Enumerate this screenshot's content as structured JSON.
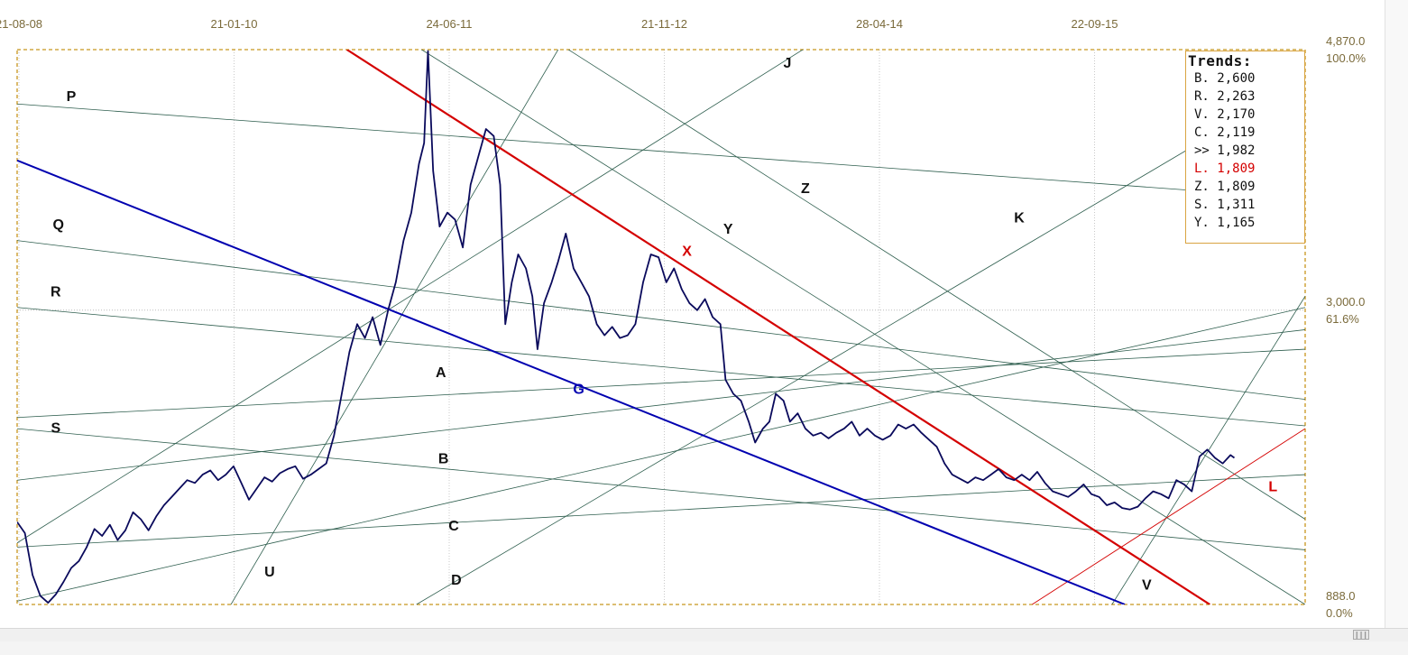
{
  "chart_data": {
    "type": "line",
    "x_tick_labels": [
      "21-08-08",
      "21-01-10",
      "24-06-11",
      "21-11-12",
      "28-04-14",
      "22-09-15"
    ],
    "y_labels": [
      {
        "value": 4870.0,
        "label": "4,870.0",
        "pct": "100.0%"
      },
      {
        "value": 3000.0,
        "label": "3,000.0",
        "pct": "61.6%"
      },
      {
        "value": 888.0,
        "label": "888.0",
        "pct": "0.0%"
      }
    ],
    "ylim": [
      888.0,
      4870.0
    ],
    "colors": {
      "price": "#0a0a5c",
      "thin_lines": "#2e5e4e",
      "red_trend": "#d40000",
      "blue_trend": "#0000b0",
      "frame": "#c8961e",
      "axis_text": "#7a6a3a"
    },
    "series": [
      {
        "name": "",
        "points": [
          [
            0.0,
            1480
          ],
          [
            0.6,
            1400
          ],
          [
            1.2,
            1100
          ],
          [
            1.8,
            950
          ],
          [
            2.4,
            900
          ],
          [
            3.0,
            960
          ],
          [
            3.6,
            1050
          ],
          [
            4.2,
            1150
          ],
          [
            4.8,
            1200
          ],
          [
            5.4,
            1300
          ],
          [
            6.0,
            1430
          ],
          [
            6.6,
            1380
          ],
          [
            7.2,
            1460
          ],
          [
            7.8,
            1350
          ],
          [
            8.4,
            1420
          ],
          [
            9.0,
            1550
          ],
          [
            9.6,
            1500
          ],
          [
            10.2,
            1420
          ],
          [
            10.8,
            1520
          ],
          [
            11.4,
            1600
          ],
          [
            12.0,
            1660
          ],
          [
            12.6,
            1720
          ],
          [
            13.2,
            1780
          ],
          [
            13.8,
            1760
          ],
          [
            14.4,
            1820
          ],
          [
            15.0,
            1850
          ],
          [
            15.6,
            1780
          ],
          [
            16.2,
            1820
          ],
          [
            16.8,
            1880
          ],
          [
            17.4,
            1760
          ],
          [
            18.0,
            1640
          ],
          [
            18.6,
            1720
          ],
          [
            19.2,
            1800
          ],
          [
            19.8,
            1770
          ],
          [
            20.4,
            1830
          ],
          [
            21.0,
            1860
          ],
          [
            21.6,
            1880
          ],
          [
            22.2,
            1790
          ],
          [
            22.8,
            1820
          ],
          [
            23.4,
            1860
          ],
          [
            24.0,
            1900
          ],
          [
            24.6,
            2100
          ],
          [
            25.2,
            2400
          ],
          [
            25.8,
            2700
          ],
          [
            26.4,
            2900
          ],
          [
            27.0,
            2800
          ],
          [
            27.6,
            2950
          ],
          [
            28.2,
            2750
          ],
          [
            28.8,
            3000
          ],
          [
            29.4,
            3200
          ],
          [
            30.0,
            3500
          ],
          [
            30.6,
            3700
          ],
          [
            31.2,
            4050
          ],
          [
            31.6,
            4200
          ],
          [
            31.9,
            4860
          ],
          [
            32.3,
            4000
          ],
          [
            32.8,
            3600
          ],
          [
            33.4,
            3700
          ],
          [
            34.0,
            3650
          ],
          [
            34.6,
            3450
          ],
          [
            35.2,
            3900
          ],
          [
            35.8,
            4100
          ],
          [
            36.4,
            4300
          ],
          [
            37.0,
            4250
          ],
          [
            37.5,
            3900
          ],
          [
            37.9,
            2900
          ],
          [
            38.4,
            3200
          ],
          [
            38.9,
            3400
          ],
          [
            39.5,
            3300
          ],
          [
            40.0,
            3100
          ],
          [
            40.4,
            2720
          ],
          [
            40.9,
            3050
          ],
          [
            41.5,
            3200
          ],
          [
            42.0,
            3350
          ],
          [
            42.6,
            3550
          ],
          [
            43.2,
            3300
          ],
          [
            43.8,
            3200
          ],
          [
            44.4,
            3100
          ],
          [
            45.0,
            2900
          ],
          [
            45.6,
            2820
          ],
          [
            46.2,
            2880
          ],
          [
            46.8,
            2800
          ],
          [
            47.4,
            2820
          ],
          [
            48.0,
            2900
          ],
          [
            48.6,
            3200
          ],
          [
            49.2,
            3400
          ],
          [
            49.8,
            3380
          ],
          [
            50.4,
            3200
          ],
          [
            51.0,
            3300
          ],
          [
            51.6,
            3150
          ],
          [
            52.2,
            3050
          ],
          [
            52.8,
            3000
          ],
          [
            53.4,
            3080
          ],
          [
            54.0,
            2950
          ],
          [
            54.6,
            2900
          ],
          [
            55.0,
            2500
          ],
          [
            55.6,
            2400
          ],
          [
            56.2,
            2350
          ],
          [
            56.8,
            2200
          ],
          [
            57.3,
            2050
          ],
          [
            57.9,
            2150
          ],
          [
            58.4,
            2200
          ],
          [
            58.9,
            2400
          ],
          [
            59.5,
            2350
          ],
          [
            60.0,
            2200
          ],
          [
            60.6,
            2260
          ],
          [
            61.2,
            2150
          ],
          [
            61.8,
            2100
          ],
          [
            62.4,
            2120
          ],
          [
            63.0,
            2080
          ],
          [
            63.6,
            2120
          ],
          [
            64.2,
            2150
          ],
          [
            64.8,
            2200
          ],
          [
            65.4,
            2100
          ],
          [
            66.0,
            2150
          ],
          [
            66.6,
            2100
          ],
          [
            67.2,
            2070
          ],
          [
            67.8,
            2100
          ],
          [
            68.4,
            2180
          ],
          [
            69.0,
            2150
          ],
          [
            69.6,
            2180
          ],
          [
            70.2,
            2120
          ],
          [
            70.8,
            2070
          ],
          [
            71.4,
            2020
          ],
          [
            72.0,
            1900
          ],
          [
            72.6,
            1820
          ],
          [
            73.2,
            1790
          ],
          [
            73.8,
            1760
          ],
          [
            74.4,
            1800
          ],
          [
            75.0,
            1780
          ],
          [
            75.6,
            1820
          ],
          [
            76.2,
            1860
          ],
          [
            76.8,
            1800
          ],
          [
            77.4,
            1780
          ],
          [
            78.0,
            1820
          ],
          [
            78.6,
            1780
          ],
          [
            79.2,
            1840
          ],
          [
            79.8,
            1760
          ],
          [
            80.4,
            1700
          ],
          [
            81.0,
            1680
          ],
          [
            81.6,
            1660
          ],
          [
            82.2,
            1700
          ],
          [
            82.8,
            1750
          ],
          [
            83.4,
            1680
          ],
          [
            84.0,
            1660
          ],
          [
            84.6,
            1600
          ],
          [
            85.2,
            1620
          ],
          [
            85.8,
            1580
          ],
          [
            86.4,
            1570
          ],
          [
            87.0,
            1590
          ],
          [
            87.6,
            1650
          ],
          [
            88.2,
            1700
          ],
          [
            88.8,
            1680
          ],
          [
            89.4,
            1650
          ],
          [
            90.0,
            1780
          ],
          [
            90.6,
            1750
          ],
          [
            91.2,
            1700
          ],
          [
            91.8,
            1950
          ],
          [
            92.4,
            2000
          ],
          [
            93.0,
            1940
          ],
          [
            93.6,
            1900
          ],
          [
            94.2,
            1960
          ],
          [
            94.5,
            1940
          ]
        ]
      }
    ],
    "trendlines": [
      {
        "label": "P",
        "x1": 0.0,
        "y1": 4480,
        "x2": 100,
        "y2": 3800,
        "style": "thin"
      },
      {
        "label": "Q",
        "x1": 0.0,
        "y1": 3500,
        "x2": 100,
        "y2": 2360,
        "style": "thin"
      },
      {
        "label": "R",
        "x1": 0.0,
        "y1": 3020,
        "x2": 100,
        "y2": 2170,
        "style": "thin"
      },
      {
        "label": "S",
        "x1": 0.0,
        "y1": 2150,
        "x2": 100,
        "y2": 1280,
        "style": "thin"
      },
      {
        "label": "A",
        "x1": 0.0,
        "y1": 2230,
        "x2": 100,
        "y2": 2720,
        "style": "thin"
      },
      {
        "label": "B",
        "x1": 0.0,
        "y1": 1780,
        "x2": 100,
        "y2": 2860,
        "style": "thin"
      },
      {
        "label": "C",
        "x1": 0.0,
        "y1": 1300,
        "x2": 100,
        "y2": 1820,
        "style": "thin"
      },
      {
        "label": "D",
        "x1": 0.0,
        "y1": 912,
        "x2": 100,
        "y2": 3020,
        "style": "thin"
      },
      {
        "label": "U",
        "x1": 16.6,
        "y1": 888,
        "x2": 42.0,
        "y2": 4870,
        "style": "thin"
      },
      {
        "label": "J",
        "x1": 0.0,
        "y1": 1330,
        "x2": 61.0,
        "y2": 4870,
        "style": "thin"
      },
      {
        "label": "K",
        "x1": 31.0,
        "y1": 888,
        "x2": 100,
        "y2": 4650,
        "style": "thin"
      },
      {
        "label": "Y",
        "x1": 31.4,
        "y1": 4870,
        "x2": 100,
        "y2": 888,
        "style": "thin"
      },
      {
        "label": "Z",
        "x1": 42.8,
        "y1": 4870,
        "x2": 100,
        "y2": 1500,
        "style": "thin"
      },
      {
        "label": "V",
        "x1": 85.0,
        "y1": 888,
        "x2": 100,
        "y2": 3100,
        "style": "thin"
      },
      {
        "label": "X",
        "x1": 25.6,
        "y1": 4870,
        "x2": 92.6,
        "y2": 888,
        "style": "red"
      },
      {
        "label": "L",
        "x1": 78.8,
        "y1": 888,
        "x2": 100,
        "y2": 2150,
        "style": "red-thin"
      },
      {
        "label": "G",
        "x1": 0.0,
        "y1": 4075,
        "x2": 86.0,
        "y2": 888,
        "style": "blue"
      }
    ],
    "trend_labels": [
      {
        "text": "P",
        "x": 4.2,
        "y": 4500,
        "color": "#111"
      },
      {
        "text": "Q",
        "x": 3.2,
        "y": 3580,
        "color": "#111"
      },
      {
        "text": "R",
        "x": 3.0,
        "y": 3100,
        "color": "#111"
      },
      {
        "text": "S",
        "x": 3.0,
        "y": 2120,
        "color": "#111"
      },
      {
        "text": "A",
        "x": 32.9,
        "y": 2520,
        "color": "#111"
      },
      {
        "text": "B",
        "x": 33.1,
        "y": 1900,
        "color": "#111"
      },
      {
        "text": "C",
        "x": 33.9,
        "y": 1420,
        "color": "#111"
      },
      {
        "text": "D",
        "x": 34.1,
        "y": 1030,
        "color": "#111"
      },
      {
        "text": "U",
        "x": 19.6,
        "y": 1090,
        "color": "#111"
      },
      {
        "text": "J",
        "x": 59.8,
        "y": 4740,
        "color": "#111"
      },
      {
        "text": "K",
        "x": 77.8,
        "y": 3630,
        "color": "#111"
      },
      {
        "text": "Y",
        "x": 55.2,
        "y": 3550,
        "color": "#111"
      },
      {
        "text": "Z",
        "x": 61.2,
        "y": 3840,
        "color": "#111"
      },
      {
        "text": "V",
        "x": 87.7,
        "y": 995,
        "color": "#111"
      },
      {
        "text": "X",
        "x": 52.0,
        "y": 3390,
        "color": "#d40000"
      },
      {
        "text": "L",
        "x": 97.5,
        "y": 1700,
        "color": "#d40000"
      },
      {
        "text": "G",
        "x": 43.6,
        "y": 2400,
        "color": "#0000b0"
      }
    ],
    "legend": {
      "title": "Trends:",
      "entries": [
        {
          "label": "B. 2,600",
          "color": "#111"
        },
        {
          "label": "R. 2,263",
          "color": "#111"
        },
        {
          "label": "V. 2,170",
          "color": "#111"
        },
        {
          "label": "C. 2,119",
          "color": "#111"
        },
        {
          "label": ">> 1,982",
          "color": "#111"
        },
        {
          "label": "L. 1,809",
          "color": "#d40000"
        },
        {
          "label": "Z. 1,809",
          "color": "#111"
        },
        {
          "label": "S. 1,311",
          "color": "#111"
        },
        {
          "label": "Y. 1,165",
          "color": "#111"
        }
      ]
    }
  }
}
